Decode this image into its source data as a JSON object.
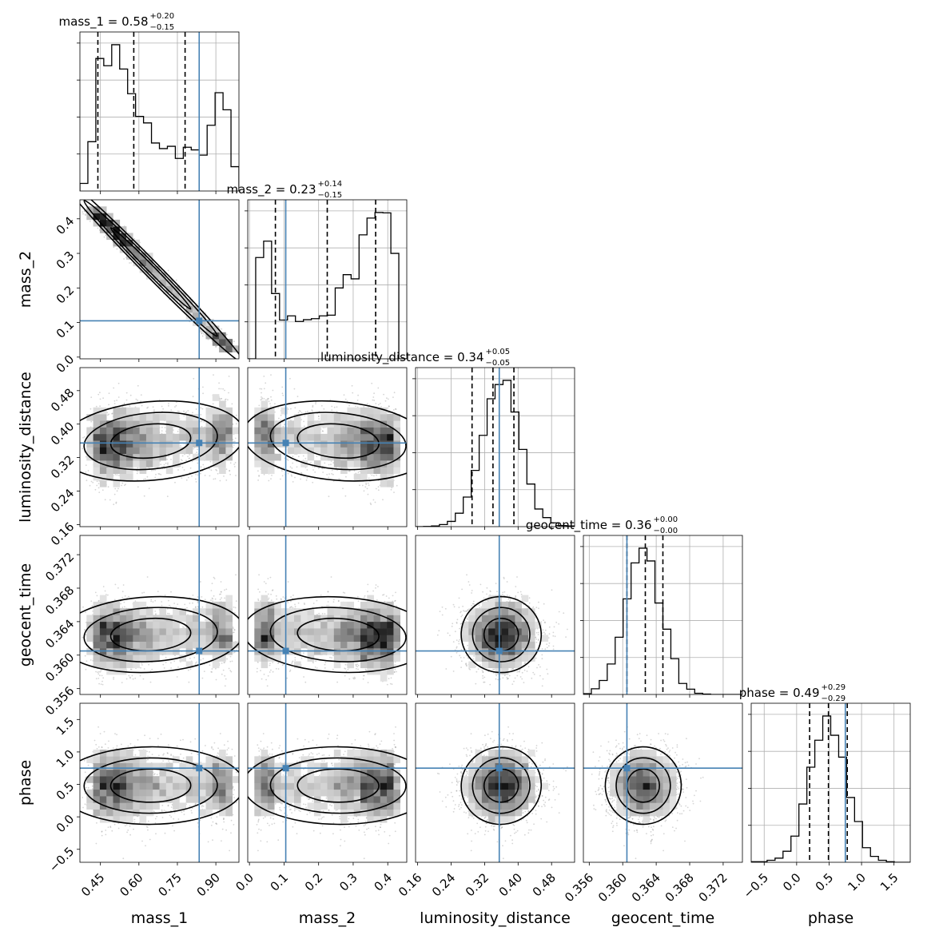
{
  "chart_data": {
    "type": "corner",
    "colors": {
      "truth": "#4682b4",
      "hist": "#000000",
      "grid": "#b0b0b0",
      "density": "#000000",
      "points": "#000000"
    },
    "grid": true,
    "parameters": [
      {
        "key": "mass_1",
        "label": "mass_1",
        "range": [
          0.37,
          0.99
        ],
        "ticks": [
          "0.45",
          "0.60",
          "0.75",
          "0.90"
        ],
        "tick_values": [
          0.45,
          0.6,
          0.75,
          0.9
        ],
        "truth": 0.835,
        "title": {
          "prefix": "mass_1 = 0.58",
          "plus": "+0.20",
          "minus": "−0.15"
        },
        "quantiles": [
          0.44,
          0.58,
          0.78
        ],
        "median": 0.58,
        "sigma": 0.18,
        "dist": "mass1"
      },
      {
        "key": "mass_2",
        "label": "mass_2",
        "range": [
          -0.005,
          0.455
        ],
        "ticks": [
          "0.0",
          "0.1",
          "0.2",
          "0.3",
          "0.4"
        ],
        "tick_values": [
          0.0,
          0.1,
          0.2,
          0.3,
          0.4
        ],
        "truth": 0.105,
        "title": {
          "prefix": "mass_2 = 0.23",
          "plus": "+0.14",
          "minus": "−0.15"
        },
        "quantiles": [
          0.075,
          0.225,
          0.365
        ],
        "median": 0.23,
        "sigma": 0.13,
        "dist": "mass2"
      },
      {
        "key": "luminosity_distance",
        "label": "luminosity_distance",
        "range": [
          0.155,
          0.535
        ],
        "ticks": [
          "0.16",
          "0.24",
          "0.32",
          "0.40",
          "0.48"
        ],
        "tick_values": [
          0.16,
          0.24,
          0.32,
          0.4,
          0.48
        ],
        "truth": 0.355,
        "title": {
          "prefix": "luminosity_distance = 0.34",
          "plus": "+0.05",
          "minus": "−0.05"
        },
        "quantiles": [
          0.29,
          0.34,
          0.39
        ],
        "median": 0.34,
        "sigma": 0.047,
        "dist": "normal"
      },
      {
        "key": "geocent_time",
        "label": "geocent_time",
        "range": [
          0.3553,
          0.3743
        ],
        "ticks": [
          "0.356",
          "0.360",
          "0.364",
          "0.368",
          "0.372"
        ],
        "tick_values": [
          0.356,
          0.36,
          0.364,
          0.368,
          0.372
        ],
        "truth": 0.3605,
        "title": {
          "prefix": "geocent_time = 0.36",
          "plus": "+0.00",
          "minus": "−0.00"
        },
        "quantiles": [
          0.3605,
          0.3627,
          0.3648
        ],
        "median": 0.3627,
        "sigma": 0.0021,
        "dist": "normal"
      },
      {
        "key": "phase",
        "label": "phase",
        "range": [
          -0.7,
          1.75
        ],
        "ticks": [
          "−0.5",
          "0.0",
          "0.5",
          "1.0",
          "1.5"
        ],
        "tick_values": [
          -0.5,
          0.0,
          0.5,
          1.0,
          1.5
        ],
        "truth": 0.75,
        "title": {
          "prefix": "phase = 0.49",
          "plus": "+0.29",
          "minus": "−0.29"
        },
        "quantiles": [
          0.2,
          0.49,
          0.78
        ],
        "median": 0.49,
        "sigma": 0.29,
        "dist": "normal"
      }
    ]
  }
}
